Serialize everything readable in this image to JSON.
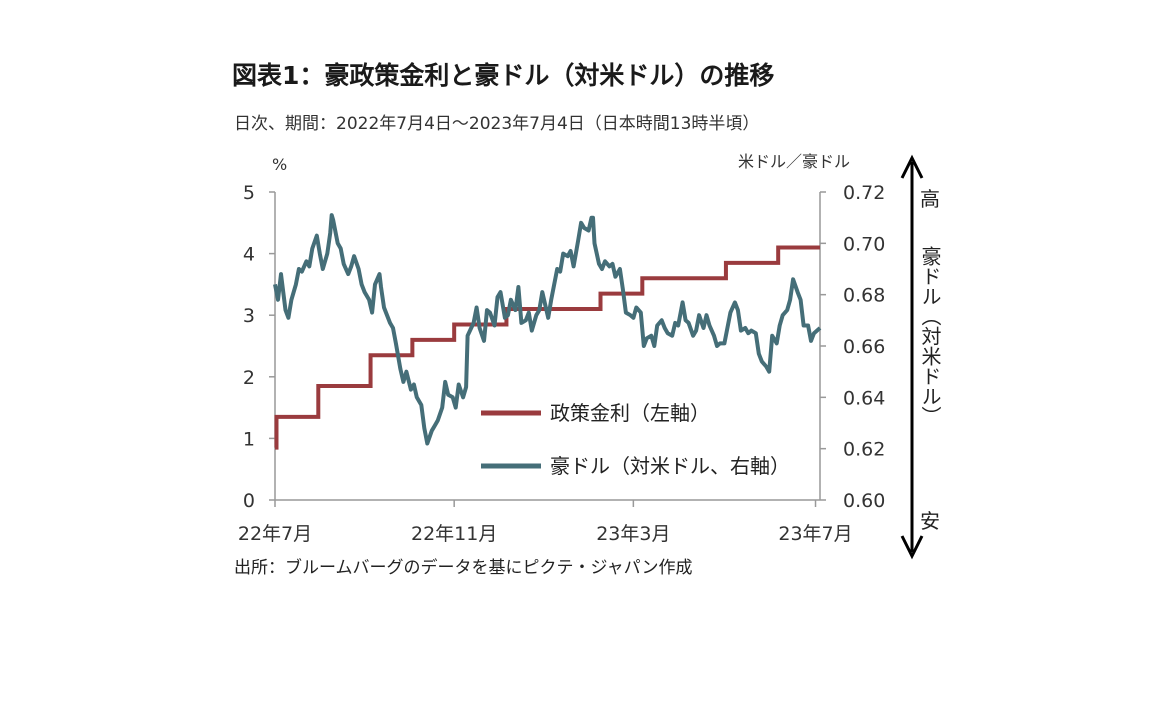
{
  "title": "図表1：豪政策金利と豪ドル（対米ドル）の推移",
  "subtitle": "日次、期間：2022年7月4日～2023年7月4日（日本時間13時半頃）",
  "source": "出所：ブルームバーグのデータを基にピクテ・ジャパン作成",
  "colors": {
    "policy_rate": "#9a3b3e",
    "aud": "#456e78",
    "axis": "#999999"
  },
  "right_annotation": {
    "top": "高",
    "middle": "豪ドル（対米ドル）",
    "bottom": "安"
  },
  "chart_data": {
    "type": "line",
    "title": "図表1：豪政策金利と豪ドル（対米ドル）の推移",
    "x_range": [
      "2022-07-04",
      "2023-07-04"
    ],
    "x_ticks": [
      {
        "date": "2022-07-01",
        "label": "22年7月"
      },
      {
        "date": "2022-11-01",
        "label": "22年11月"
      },
      {
        "date": "2023-03-01",
        "label": "23年3月"
      },
      {
        "date": "2023-07-01",
        "label": "23年7月"
      }
    ],
    "y_left": {
      "unit_label": "%",
      "range": [
        0,
        5
      ],
      "ticks": [
        "0",
        "1",
        "2",
        "3",
        "4",
        "5"
      ]
    },
    "y_right": {
      "unit_label": "米ドル／豪ドル",
      "range": [
        0.6,
        0.72
      ],
      "ticks": [
        "0.60",
        "0.62",
        "0.64",
        "0.66",
        "0.68",
        "0.70",
        "0.72"
      ]
    },
    "legend": {
      "placement": "center-right"
    },
    "series": [
      {
        "name": "政策金利（左軸）",
        "axis": "left",
        "style": "step",
        "points": [
          [
            "2022-07-04",
            0.85
          ],
          [
            "2022-07-05",
            1.35
          ],
          [
            "2022-08-02",
            1.85
          ],
          [
            "2022-09-06",
            2.35
          ],
          [
            "2022-10-04",
            2.6
          ],
          [
            "2022-11-01",
            2.85
          ],
          [
            "2022-12-06",
            3.1
          ],
          [
            "2023-02-07",
            3.35
          ],
          [
            "2023-03-07",
            3.6
          ],
          [
            "2023-05-02",
            3.85
          ],
          [
            "2023-06-06",
            4.1
          ],
          [
            "2023-07-04",
            4.1
          ]
        ]
      },
      {
        "name": "豪ドル（対米ドル、右軸）",
        "axis": "right",
        "points": [
          [
            "2022-07-04",
            0.684
          ],
          [
            "2022-07-06",
            0.678
          ],
          [
            "2022-07-08",
            0.688
          ],
          [
            "2022-07-11",
            0.674
          ],
          [
            "2022-07-13",
            0.671
          ],
          [
            "2022-07-15",
            0.678
          ],
          [
            "2022-07-18",
            0.684
          ],
          [
            "2022-07-20",
            0.69
          ],
          [
            "2022-07-22",
            0.689
          ],
          [
            "2022-07-25",
            0.693
          ],
          [
            "2022-07-27",
            0.691
          ],
          [
            "2022-07-29",
            0.698
          ],
          [
            "2022-08-01",
            0.703
          ],
          [
            "2022-08-03",
            0.696
          ],
          [
            "2022-08-05",
            0.69
          ],
          [
            "2022-08-08",
            0.696
          ],
          [
            "2022-08-10",
            0.704
          ],
          [
            "2022-08-11",
            0.711
          ],
          [
            "2022-08-12",
            0.709
          ],
          [
            "2022-08-15",
            0.7
          ],
          [
            "2022-08-17",
            0.698
          ],
          [
            "2022-08-19",
            0.692
          ],
          [
            "2022-08-22",
            0.688
          ],
          [
            "2022-08-24",
            0.691
          ],
          [
            "2022-08-26",
            0.695
          ],
          [
            "2022-08-29",
            0.69
          ],
          [
            "2022-08-31",
            0.684
          ],
          [
            "2022-09-02",
            0.681
          ],
          [
            "2022-09-05",
            0.678
          ],
          [
            "2022-09-07",
            0.673
          ],
          [
            "2022-09-09",
            0.684
          ],
          [
            "2022-09-12",
            0.688
          ],
          [
            "2022-09-13",
            0.683
          ],
          [
            "2022-09-15",
            0.675
          ],
          [
            "2022-09-19",
            0.669
          ],
          [
            "2022-09-21",
            0.667
          ],
          [
            "2022-09-23",
            0.661
          ],
          [
            "2022-09-26",
            0.651
          ],
          [
            "2022-09-28",
            0.646
          ],
          [
            "2022-09-30",
            0.65
          ],
          [
            "2022-10-03",
            0.643
          ],
          [
            "2022-10-05",
            0.645
          ],
          [
            "2022-10-07",
            0.64
          ],
          [
            "2022-10-10",
            0.637
          ],
          [
            "2022-10-12",
            0.628
          ],
          [
            "2022-10-14",
            0.622
          ],
          [
            "2022-10-17",
            0.627
          ],
          [
            "2022-10-19",
            0.629
          ],
          [
            "2022-10-21",
            0.631
          ],
          [
            "2022-10-24",
            0.636
          ],
          [
            "2022-10-26",
            0.646
          ],
          [
            "2022-10-28",
            0.641
          ],
          [
            "2022-10-31",
            0.64
          ],
          [
            "2022-11-02",
            0.636
          ],
          [
            "2022-11-04",
            0.645
          ],
          [
            "2022-11-07",
            0.64
          ],
          [
            "2022-11-09",
            0.644
          ],
          [
            "2022-11-10",
            0.664
          ],
          [
            "2022-11-14",
            0.669
          ],
          [
            "2022-11-16",
            0.675
          ],
          [
            "2022-11-18",
            0.667
          ],
          [
            "2022-11-21",
            0.662
          ],
          [
            "2022-11-23",
            0.674
          ],
          [
            "2022-11-25",
            0.673
          ],
          [
            "2022-11-28",
            0.668
          ],
          [
            "2022-11-30",
            0.679
          ],
          [
            "2022-12-02",
            0.681
          ],
          [
            "2022-12-05",
            0.671
          ],
          [
            "2022-12-07",
            0.672
          ],
          [
            "2022-12-09",
            0.678
          ],
          [
            "2022-12-12",
            0.674
          ],
          [
            "2022-12-14",
            0.683
          ],
          [
            "2022-12-16",
            0.669
          ],
          [
            "2022-12-19",
            0.67
          ],
          [
            "2022-12-21",
            0.673
          ],
          [
            "2022-12-23",
            0.666
          ],
          [
            "2022-12-26",
            0.672
          ],
          [
            "2022-12-28",
            0.674
          ],
          [
            "2022-12-30",
            0.681
          ],
          [
            "2023-01-03",
            0.671
          ],
          [
            "2023-01-05",
            0.678
          ],
          [
            "2023-01-09",
            0.69
          ],
          [
            "2023-01-11",
            0.689
          ],
          [
            "2023-01-13",
            0.696
          ],
          [
            "2023-01-16",
            0.695
          ],
          [
            "2023-01-18",
            0.697
          ],
          [
            "2023-01-20",
            0.691
          ],
          [
            "2023-01-23",
            0.701
          ],
          [
            "2023-01-25",
            0.708
          ],
          [
            "2023-01-27",
            0.706
          ],
          [
            "2023-01-30",
            0.705
          ],
          [
            "2023-02-01",
            0.71
          ],
          [
            "2023-02-02",
            0.71
          ],
          [
            "2023-02-03",
            0.7
          ],
          [
            "2023-02-06",
            0.692
          ],
          [
            "2023-02-08",
            0.69
          ],
          [
            "2023-02-10",
            0.693
          ],
          [
            "2023-02-13",
            0.691
          ],
          [
            "2023-02-15",
            0.692
          ],
          [
            "2023-02-17",
            0.687
          ],
          [
            "2023-02-20",
            0.69
          ],
          [
            "2023-02-22",
            0.682
          ],
          [
            "2023-02-24",
            0.673
          ],
          [
            "2023-02-27",
            0.672
          ],
          [
            "2023-03-01",
            0.671
          ],
          [
            "2023-03-03",
            0.675
          ],
          [
            "2023-03-06",
            0.673
          ],
          [
            "2023-03-08",
            0.66
          ],
          [
            "2023-03-10",
            0.663
          ],
          [
            "2023-03-13",
            0.664
          ],
          [
            "2023-03-15",
            0.66
          ],
          [
            "2023-03-17",
            0.668
          ],
          [
            "2023-03-20",
            0.67
          ],
          [
            "2023-03-22",
            0.667
          ],
          [
            "2023-03-24",
            0.665
          ],
          [
            "2023-03-27",
            0.664
          ],
          [
            "2023-03-29",
            0.669
          ],
          [
            "2023-03-31",
            0.668
          ],
          [
            "2023-04-03",
            0.677
          ],
          [
            "2023-04-05",
            0.67
          ],
          [
            "2023-04-07",
            0.669
          ],
          [
            "2023-04-10",
            0.664
          ],
          [
            "2023-04-12",
            0.666
          ],
          [
            "2023-04-14",
            0.672
          ],
          [
            "2023-04-17",
            0.667
          ],
          [
            "2023-04-19",
            0.672
          ],
          [
            "2023-04-21",
            0.668
          ],
          [
            "2023-04-24",
            0.664
          ],
          [
            "2023-04-26",
            0.66
          ],
          [
            "2023-04-28",
            0.661
          ],
          [
            "2023-05-01",
            0.661
          ],
          [
            "2023-05-03",
            0.667
          ],
          [
            "2023-05-05",
            0.673
          ],
          [
            "2023-05-08",
            0.677
          ],
          [
            "2023-05-10",
            0.674
          ],
          [
            "2023-05-12",
            0.666
          ],
          [
            "2023-05-15",
            0.667
          ],
          [
            "2023-05-17",
            0.665
          ],
          [
            "2023-05-19",
            0.666
          ],
          [
            "2023-05-22",
            0.665
          ],
          [
            "2023-05-24",
            0.657
          ],
          [
            "2023-05-26",
            0.654
          ],
          [
            "2023-05-29",
            0.652
          ],
          [
            "2023-05-31",
            0.65
          ],
          [
            "2023-06-02",
            0.664
          ],
          [
            "2023-06-05",
            0.661
          ],
          [
            "2023-06-07",
            0.668
          ],
          [
            "2023-06-09",
            0.672
          ],
          [
            "2023-06-12",
            0.674
          ],
          [
            "2023-06-14",
            0.678
          ],
          [
            "2023-06-16",
            0.686
          ],
          [
            "2023-06-19",
            0.681
          ],
          [
            "2023-06-21",
            0.678
          ],
          [
            "2023-06-23",
            0.668
          ],
          [
            "2023-06-26",
            0.668
          ],
          [
            "2023-06-28",
            0.662
          ],
          [
            "2023-06-30",
            0.665
          ],
          [
            "2023-07-04",
            0.667
          ]
        ]
      }
    ]
  }
}
